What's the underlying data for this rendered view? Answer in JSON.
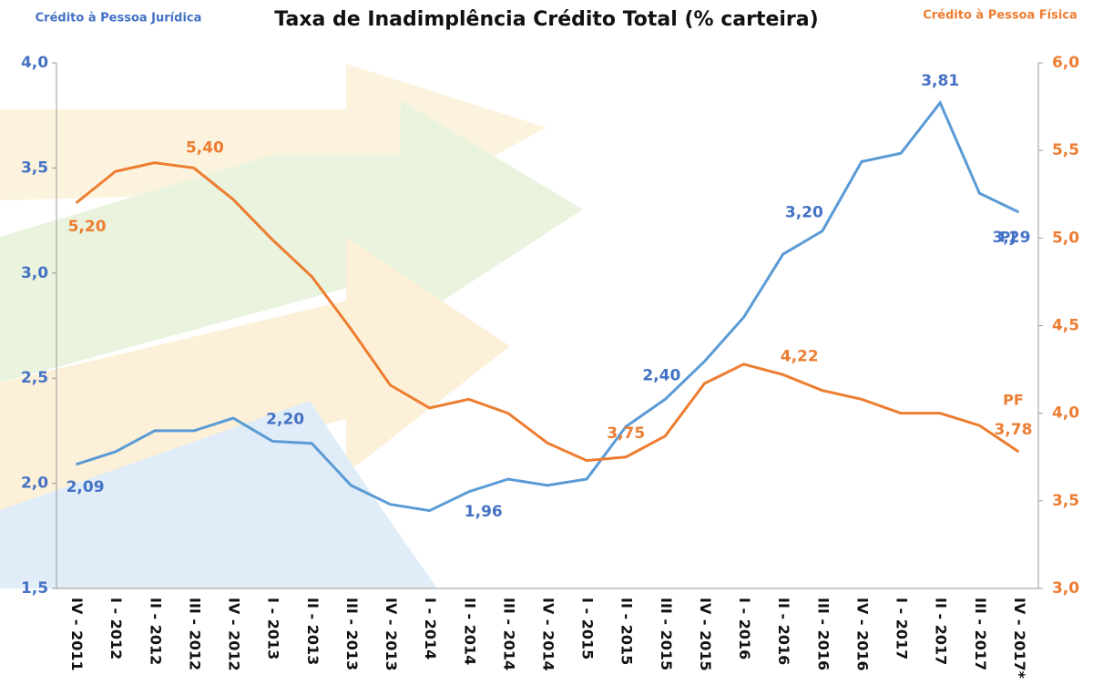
{
  "chart_data": {
    "type": "line",
    "title": "Taxa de Inadimplência Crédito Total (% carteira)",
    "y_label": "Crédito à Pessoa Jurídica",
    "y2_label": "Crédito à Pessoa Física",
    "categories": [
      "IV - 2011",
      "I - 2012",
      "II - 2012",
      "III - 2012",
      "IV - 2012",
      "I - 2013",
      "II - 2013",
      "III - 2013",
      "IV - 2013",
      "I - 2014",
      "II - 2014",
      "III - 2014",
      "IV - 2014",
      "I - 2015",
      "II - 2015",
      "III - 2015",
      "IV - 2015",
      "I - 2016",
      "II - 2016",
      "III - 2016",
      "IV - 2016",
      "I - 2017",
      "II - 2017",
      "III - 2017",
      "IV - 2017*"
    ],
    "series": [
      {
        "name": "PJ",
        "color": "#5b9bd5",
        "label_color": "#4472c4",
        "values": [
          2.09,
          2.15,
          2.25,
          2.25,
          2.31,
          2.2,
          2.19,
          1.99,
          1.9,
          1.87,
          1.96,
          2.02,
          1.99,
          2.02,
          2.27,
          2.4,
          2.58,
          2.79,
          3.09,
          3.2,
          3.53,
          3.57,
          3.81,
          3.38,
          3.29
        ],
        "value_labels": [
          "2,09",
          null,
          null,
          null,
          null,
          "2,20",
          null,
          null,
          null,
          null,
          "1,96",
          null,
          null,
          null,
          null,
          "2,40",
          null,
          null,
          null,
          "3,20",
          null,
          null,
          "3,81",
          null,
          "3,29"
        ]
      },
      {
        "name": "PF",
        "color": "#ed7d31",
        "label_color": "#ed7d31",
        "axis": "y2",
        "values": [
          5.2,
          5.38,
          5.43,
          5.4,
          5.22,
          4.99,
          4.78,
          4.48,
          4.16,
          4.03,
          4.08,
          4.0,
          3.83,
          3.73,
          3.75,
          3.87,
          4.17,
          4.28,
          4.22,
          4.13,
          4.08,
          4.0,
          4.0,
          3.93,
          3.78
        ],
        "value_labels": [
          "5,20",
          null,
          null,
          "5,40",
          null,
          null,
          null,
          null,
          null,
          null,
          null,
          null,
          null,
          null,
          "3,75",
          null,
          null,
          null,
          "4,22",
          null,
          null,
          null,
          null,
          null,
          "3,78"
        ]
      }
    ],
    "ylim": [
      1.5,
      4.0
    ],
    "yticks": [
      {
        "value": 1.5,
        "label": "1,5"
      },
      {
        "value": 2.0,
        "label": "2,0"
      },
      {
        "value": 2.5,
        "label": "2,5"
      },
      {
        "value": 3.0,
        "label": "3,0"
      },
      {
        "value": 3.5,
        "label": "3,5"
      },
      {
        "value": 4.0,
        "label": "4,0"
      }
    ],
    "y2lim": [
      3.0,
      6.0
    ],
    "y2ticks": [
      {
        "value": 3.0,
        "label": "3,0"
      },
      {
        "value": 3.5,
        "label": "3,5"
      },
      {
        "value": 4.0,
        "label": "4,0"
      },
      {
        "value": 4.5,
        "label": "4,5"
      },
      {
        "value": 5.0,
        "label": "5,0"
      },
      {
        "value": 5.5,
        "label": "5,5"
      },
      {
        "value": 6.0,
        "label": "6,0"
      }
    ],
    "grid": false
  }
}
